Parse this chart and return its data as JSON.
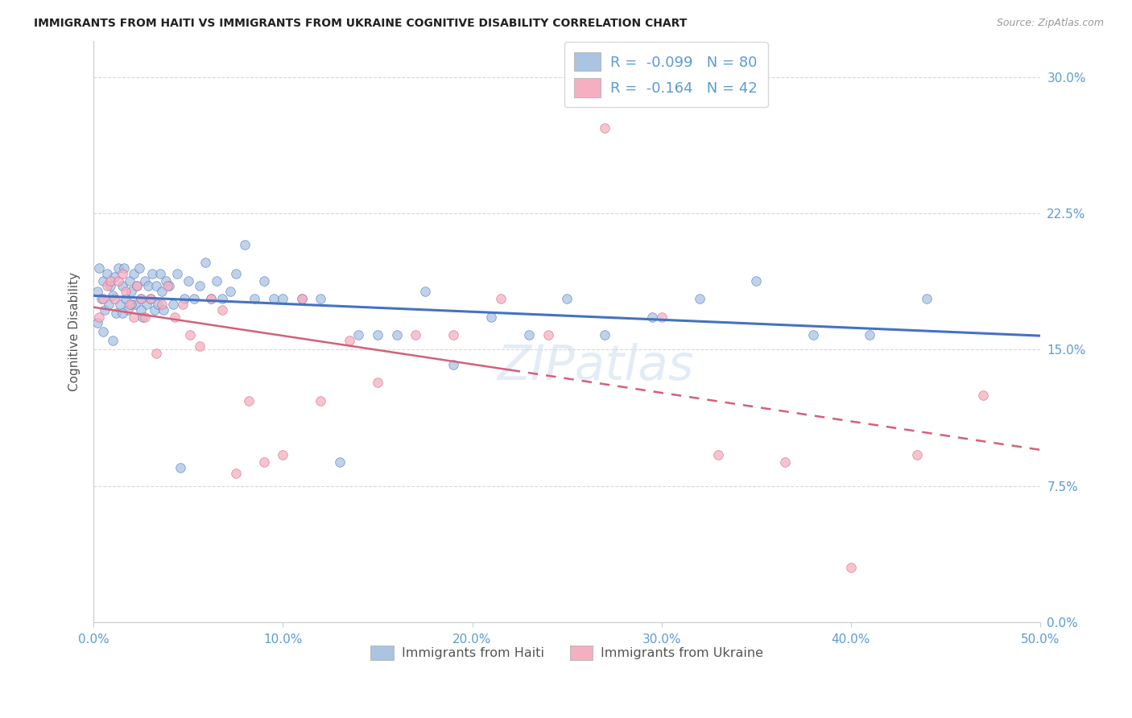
{
  "title": "IMMIGRANTS FROM HAITI VS IMMIGRANTS FROM UKRAINE COGNITIVE DISABILITY CORRELATION CHART",
  "source": "Source: ZipAtlas.com",
  "ylabel": "Cognitive Disability",
  "xlim": [
    0.0,
    0.5
  ],
  "ylim": [
    0.0,
    0.32
  ],
  "yticks": [
    0.0,
    0.075,
    0.15,
    0.225,
    0.3
  ],
  "ytick_labels": [
    "0.0%",
    "7.5%",
    "15.0%",
    "22.5%",
    "30.0%"
  ],
  "xticks": [
    0.0,
    0.1,
    0.2,
    0.3,
    0.4,
    0.5
  ],
  "xtick_labels": [
    "0.0%",
    "10.0%",
    "20.0%",
    "30.0%",
    "40.0%",
    "50.0%"
  ],
  "legend_r_haiti": "-0.099",
  "legend_n_haiti": "80",
  "legend_r_ukraine": "-0.164",
  "legend_n_ukraine": "42",
  "color_haiti": "#aac4e2",
  "color_ukraine": "#f5afc0",
  "line_color_haiti": "#4472c4",
  "line_color_ukraine": "#d4607a",
  "tick_color": "#5b9bd5",
  "scatter_alpha": 0.75,
  "scatter_size": 70,
  "watermark": "ZIPatlas",
  "haiti_x": [
    0.002,
    0.003,
    0.004,
    0.005,
    0.006,
    0.007,
    0.008,
    0.009,
    0.01,
    0.011,
    0.012,
    0.013,
    0.014,
    0.015,
    0.016,
    0.017,
    0.018,
    0.019,
    0.02,
    0.021,
    0.022,
    0.023,
    0.024,
    0.025,
    0.026,
    0.027,
    0.028,
    0.029,
    0.03,
    0.031,
    0.032,
    0.033,
    0.034,
    0.035,
    0.036,
    0.037,
    0.038,
    0.04,
    0.042,
    0.044,
    0.046,
    0.048,
    0.05,
    0.053,
    0.056,
    0.059,
    0.062,
    0.065,
    0.068,
    0.072,
    0.075,
    0.08,
    0.085,
    0.09,
    0.095,
    0.1,
    0.11,
    0.12,
    0.13,
    0.14,
    0.15,
    0.16,
    0.175,
    0.19,
    0.21,
    0.23,
    0.25,
    0.27,
    0.295,
    0.32,
    0.35,
    0.38,
    0.41,
    0.44,
    0.002,
    0.005,
    0.01,
    0.015,
    0.02,
    0.025
  ],
  "haiti_y": [
    0.182,
    0.195,
    0.178,
    0.188,
    0.172,
    0.192,
    0.175,
    0.185,
    0.18,
    0.19,
    0.17,
    0.195,
    0.175,
    0.185,
    0.195,
    0.178,
    0.172,
    0.188,
    0.182,
    0.192,
    0.175,
    0.185,
    0.195,
    0.178,
    0.168,
    0.188,
    0.175,
    0.185,
    0.178,
    0.192,
    0.172,
    0.185,
    0.175,
    0.192,
    0.182,
    0.172,
    0.188,
    0.185,
    0.175,
    0.192,
    0.085,
    0.178,
    0.188,
    0.178,
    0.185,
    0.198,
    0.178,
    0.188,
    0.178,
    0.182,
    0.192,
    0.208,
    0.178,
    0.188,
    0.178,
    0.178,
    0.178,
    0.178,
    0.088,
    0.158,
    0.158,
    0.158,
    0.182,
    0.142,
    0.168,
    0.158,
    0.178,
    0.158,
    0.168,
    0.178,
    0.188,
    0.158,
    0.158,
    0.178,
    0.165,
    0.16,
    0.155,
    0.17,
    0.175,
    0.172
  ],
  "ukraine_x": [
    0.003,
    0.005,
    0.007,
    0.009,
    0.011,
    0.013,
    0.015,
    0.017,
    0.019,
    0.021,
    0.023,
    0.025,
    0.027,
    0.03,
    0.033,
    0.036,
    0.039,
    0.043,
    0.047,
    0.051,
    0.056,
    0.062,
    0.068,
    0.075,
    0.082,
    0.09,
    0.1,
    0.11,
    0.12,
    0.135,
    0.15,
    0.17,
    0.19,
    0.215,
    0.24,
    0.27,
    0.3,
    0.33,
    0.365,
    0.4,
    0.435,
    0.47
  ],
  "ukraine_y": [
    0.168,
    0.178,
    0.185,
    0.188,
    0.178,
    0.188,
    0.192,
    0.182,
    0.175,
    0.168,
    0.185,
    0.178,
    0.168,
    0.178,
    0.148,
    0.175,
    0.185,
    0.168,
    0.175,
    0.158,
    0.152,
    0.178,
    0.172,
    0.082,
    0.122,
    0.088,
    0.092,
    0.178,
    0.122,
    0.155,
    0.132,
    0.158,
    0.158,
    0.178,
    0.158,
    0.272,
    0.168,
    0.092,
    0.088,
    0.03,
    0.092,
    0.125
  ]
}
